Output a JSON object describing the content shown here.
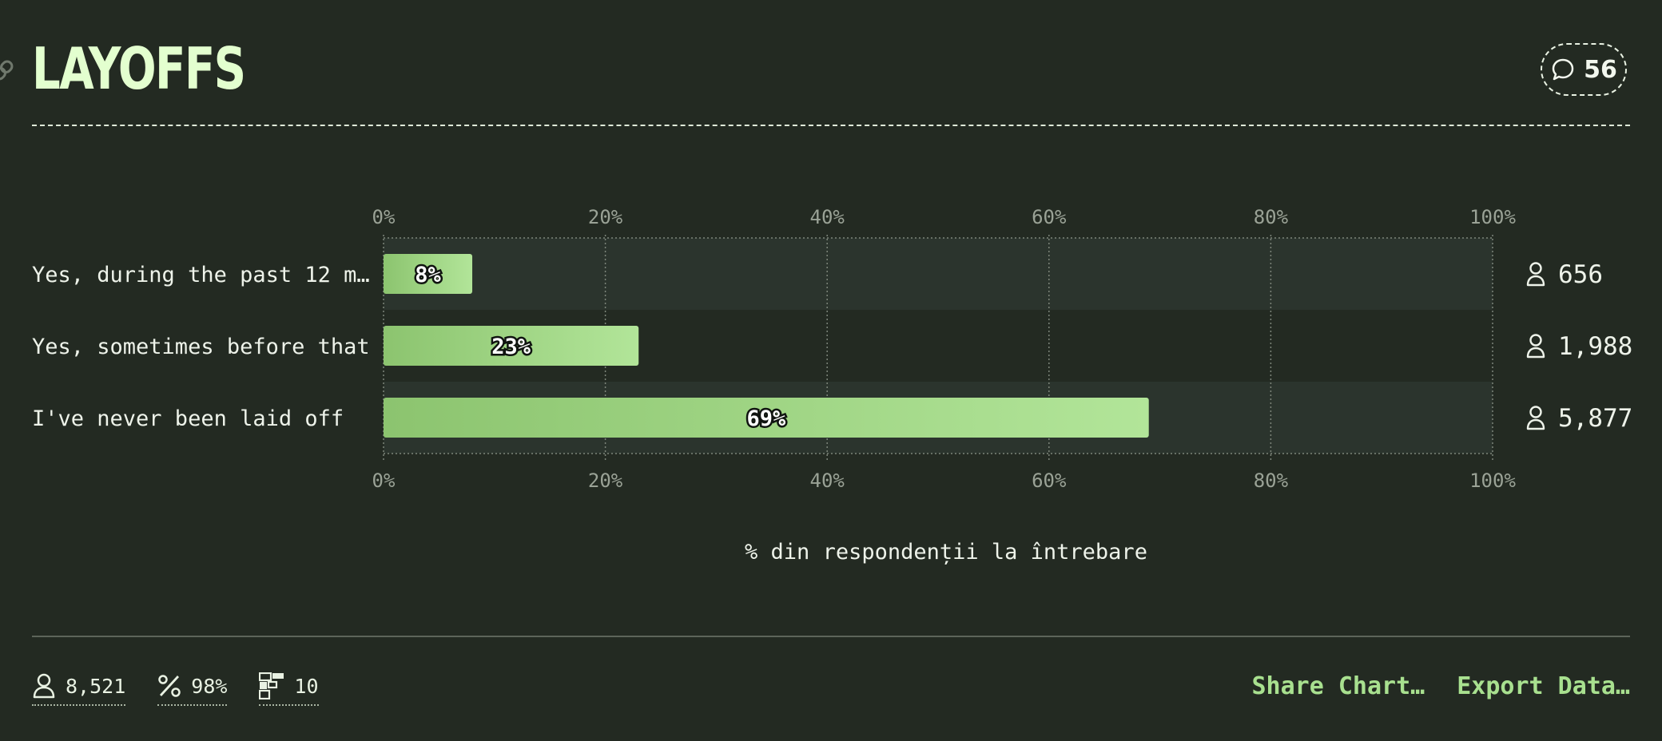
{
  "header": {
    "title": "LAYOFFS",
    "comment_count": "56"
  },
  "chart_data": {
    "type": "bar",
    "orientation": "horizontal",
    "categories": [
      "Yes, during the past 12 m…",
      "Yes, sometimes before that",
      "I've never been laid off"
    ],
    "values": [
      8,
      23,
      69
    ],
    "value_labels": [
      "8%",
      "23%",
      "69%"
    ],
    "respondents": [
      "656",
      "1,988",
      "5,877"
    ],
    "xlim": [
      0,
      100
    ],
    "xticks": [
      "0%",
      "20%",
      "40%",
      "60%",
      "80%",
      "100%"
    ],
    "xlabel": "% din respondenții la întrebare",
    "grid": true,
    "colors": {
      "bar_start": "#8cc46f",
      "bar_end": "#b2e599",
      "row_band": "#2b342d",
      "label_stroke": "#101410"
    }
  },
  "footer": {
    "stats": [
      {
        "icon": "person-icon",
        "value": "8,521"
      },
      {
        "icon": "percent-icon",
        "value": "98%"
      },
      {
        "icon": "breakdown-icon",
        "value": "10"
      }
    ],
    "share_label": "Share Chart…",
    "export_label": "Export Data…"
  }
}
